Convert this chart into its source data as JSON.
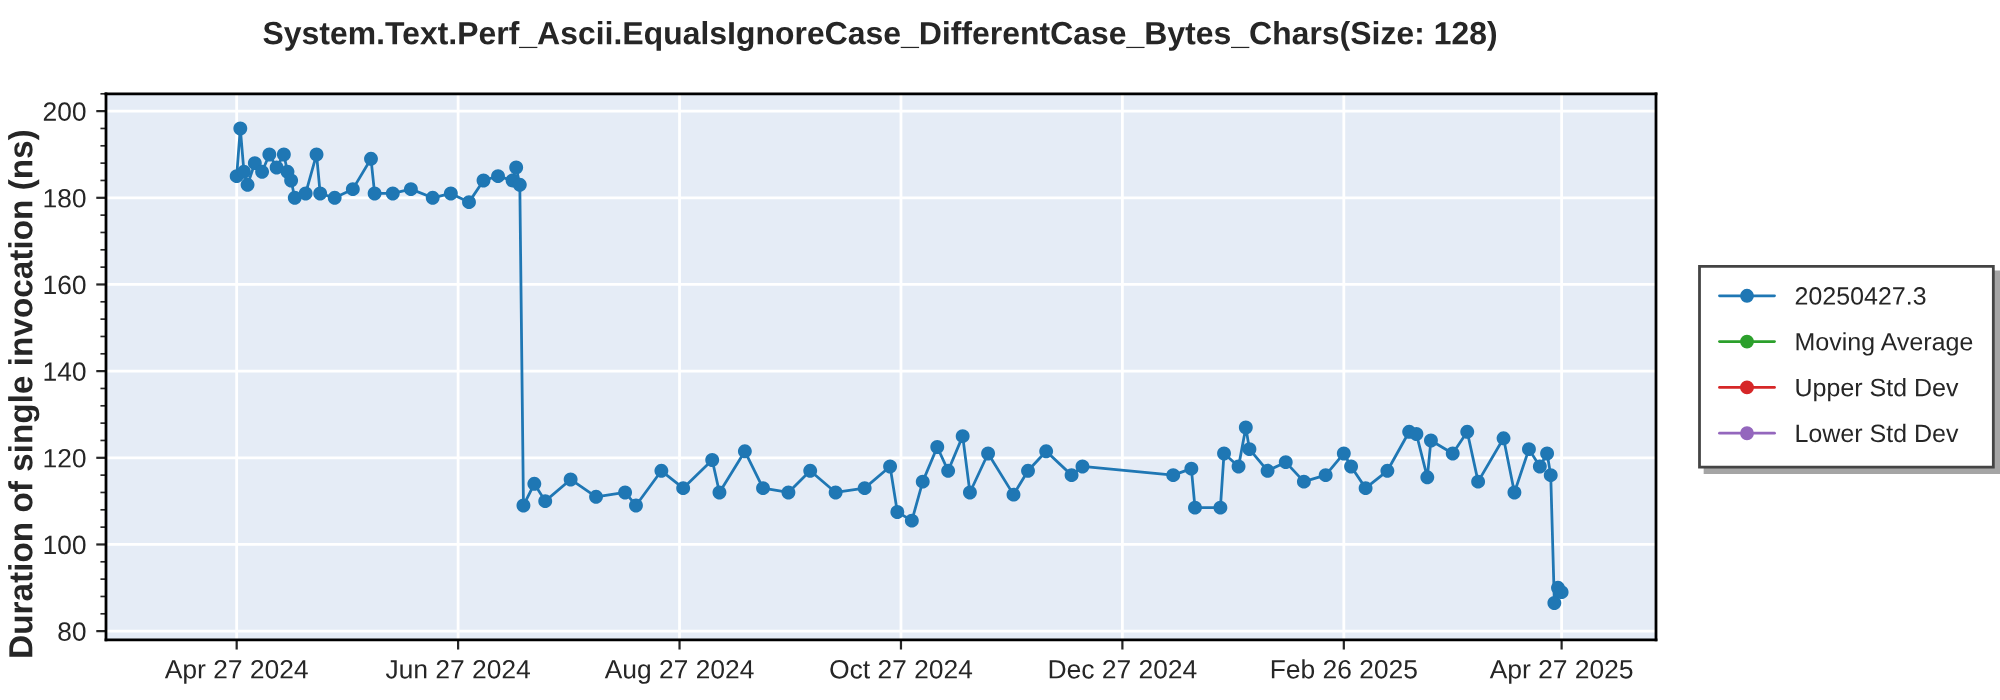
{
  "chart_data": {
    "type": "line",
    "title": "System.Text.Perf_Ascii.EqualsIgnoreCase_DifferentCase_Bytes_Chars(Size: 128)",
    "ylabel": "Duration of single invocation (ns)",
    "xlim": [
      "2024-03-22",
      "2025-05-23"
    ],
    "xticks": [
      {
        "value": "2024-04-27",
        "label": "Apr 27 2024"
      },
      {
        "value": "2024-06-27",
        "label": "Jun 27 2024"
      },
      {
        "value": "2024-08-27",
        "label": "Aug 27 2024"
      },
      {
        "value": "2024-10-27",
        "label": "Oct 27 2024"
      },
      {
        "value": "2024-12-27",
        "label": "Dec 27 2024"
      },
      {
        "value": "2025-02-26",
        "label": "Feb 26 2025"
      },
      {
        "value": "2025-04-27",
        "label": "Apr 27 2025"
      }
    ],
    "ylim": [
      78,
      204
    ],
    "yticks": [
      80,
      100,
      120,
      140,
      160,
      180,
      200
    ],
    "grid": true,
    "legend": "right",
    "marker": "circle",
    "line_style": "solid",
    "series": [
      {
        "name": "20250427.3",
        "color": "#1f77b4",
        "x": [
          "2024-04-27",
          "2024-04-28",
          "2024-04-29",
          "2024-04-30",
          "2024-05-02",
          "2024-05-04",
          "2024-05-06",
          "2024-05-08",
          "2024-05-10",
          "2024-05-11",
          "2024-05-12",
          "2024-05-13",
          "2024-05-16",
          "2024-05-19",
          "2024-05-20",
          "2024-05-24",
          "2024-05-29",
          "2024-06-03",
          "2024-06-04",
          "2024-06-09",
          "2024-06-14",
          "2024-06-20",
          "2024-06-25",
          "2024-06-30",
          "2024-07-04",
          "2024-07-08",
          "2024-07-12",
          "2024-07-13",
          "2024-07-14",
          "2024-07-15",
          "2024-07-18",
          "2024-07-21",
          "2024-07-28",
          "2024-08-04",
          "2024-08-12",
          "2024-08-15",
          "2024-08-22",
          "2024-08-28",
          "2024-09-05",
          "2024-09-07",
          "2024-09-14",
          "2024-09-19",
          "2024-09-26",
          "2024-10-02",
          "2024-10-09",
          "2024-10-17",
          "2024-10-24",
          "2024-10-26",
          "2024-10-30",
          "2024-11-02",
          "2024-11-06",
          "2024-11-09",
          "2024-11-13",
          "2024-11-15",
          "2024-11-20",
          "2024-11-27",
          "2024-12-01",
          "2024-12-06",
          "2024-12-13",
          "2024-12-16",
          "2025-01-10",
          "2025-01-15",
          "2025-01-16",
          "2025-01-23",
          "2025-01-24",
          "2025-01-28",
          "2025-01-30",
          "2025-01-31",
          "2025-02-05",
          "2025-02-10",
          "2025-02-15",
          "2025-02-21",
          "2025-02-26",
          "2025-02-28",
          "2025-03-04",
          "2025-03-10",
          "2025-03-16",
          "2025-03-18",
          "2025-03-21",
          "2025-03-22",
          "2025-03-28",
          "2025-04-01",
          "2025-04-04",
          "2025-04-11",
          "2025-04-14",
          "2025-04-18",
          "2025-04-21",
          "2025-04-23",
          "2025-04-24",
          "2025-04-25",
          "2025-04-26",
          "2025-04-27"
        ],
        "values": [
          185,
          196,
          186,
          183,
          188,
          186,
          190,
          187,
          190,
          186,
          184,
          180,
          181,
          190,
          181,
          180,
          182,
          189,
          181,
          181,
          182,
          180,
          181,
          179,
          184,
          185,
          184,
          187,
          183,
          109,
          114,
          110,
          115,
          111,
          112,
          109,
          117,
          113,
          119.5,
          112,
          121.5,
          113,
          112,
          117,
          112,
          113,
          118,
          107.5,
          105.5,
          114.5,
          122.5,
          117,
          125,
          112,
          121,
          111.5,
          117,
          121.5,
          116,
          118,
          116,
          117.5,
          108.5,
          108.5,
          121,
          118,
          127,
          122,
          117,
          119,
          114.5,
          116,
          121,
          118,
          113,
          117,
          126,
          125.5,
          115.5,
          124,
          121,
          126,
          114.5,
          124.5,
          112,
          122,
          118,
          121,
          116,
          86.5,
          90,
          89
        ]
      },
      {
        "name": "Moving Average",
        "color": "#2ca02c"
      },
      {
        "name": "Upper Std Dev",
        "color": "#d62728"
      },
      {
        "name": "Lower Std Dev",
        "color": "#9467bd"
      }
    ]
  }
}
